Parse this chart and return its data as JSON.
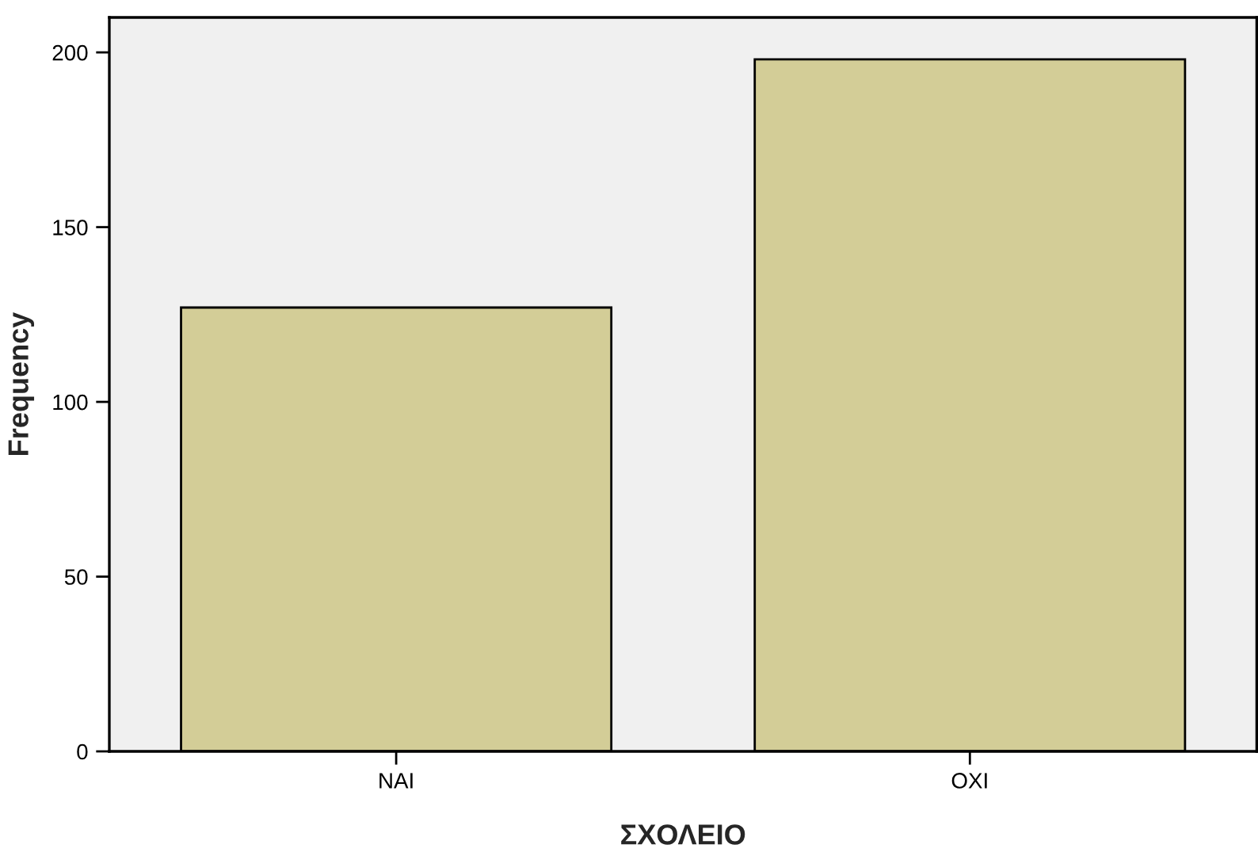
{
  "chart_data": {
    "type": "bar",
    "xlabel": "ΣΧΟΛΕΙΟ",
    "ylabel": "Frequency",
    "categories": [
      "ΝΑΙ",
      "ΟΧΙ"
    ],
    "values": [
      127,
      198
    ],
    "color": "#d3cd97",
    "ylim": [
      0,
      210
    ],
    "yticks": [
      0,
      50,
      100,
      150,
      200
    ],
    "grid": false
  }
}
